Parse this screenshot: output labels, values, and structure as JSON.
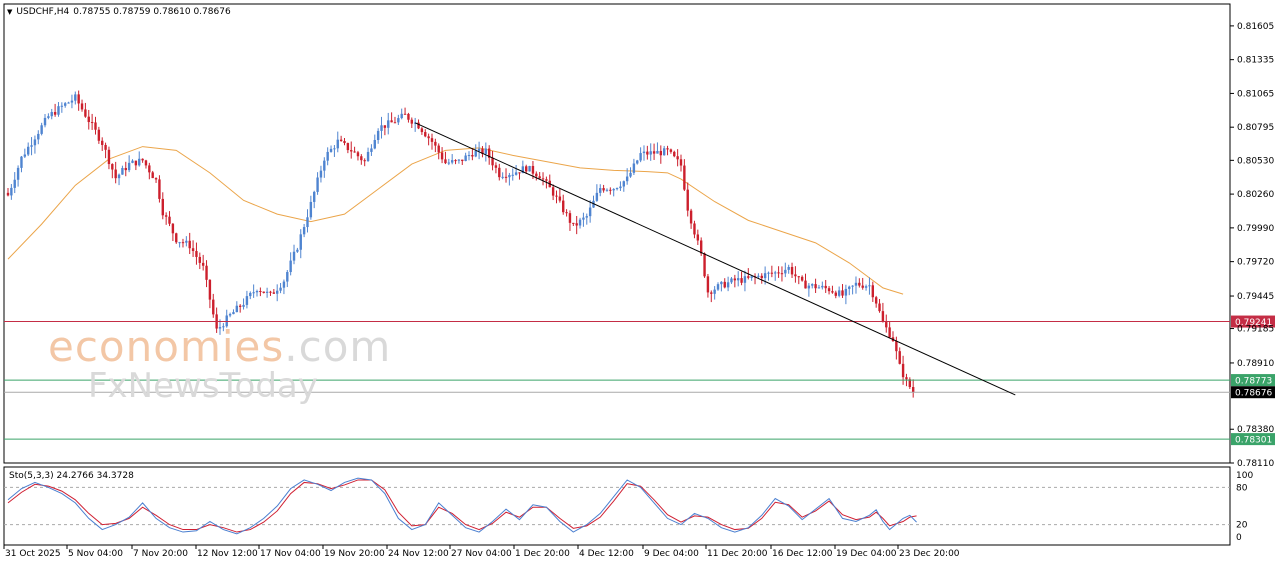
{
  "header": {
    "symbol": "USDCHF,H4",
    "ohlc": "0.78755 0.78759 0.78610 0.78676"
  },
  "oscillator": {
    "label": "Sto(5,3,3) 24.2766 34.3728",
    "ticks": [
      "100",
      "80",
      "20",
      "0"
    ]
  },
  "watermark": {
    "line1_main": "economies",
    "line1_tld": ".com",
    "line2": "FxNewsToday"
  },
  "colors": {
    "bull": "#4f84d0",
    "bear": "#cc1f2c",
    "ma": "#eba54a",
    "resistance": "#c42d45",
    "support": "#3aa369",
    "current": "#000000",
    "trendline": "#000000",
    "sto_main": "#4a7fd0",
    "sto_signal": "#d02032"
  },
  "chart_data": {
    "type": "candlestick",
    "symbol": "USDCHF",
    "timeframe": "H4",
    "y_ticks": [
      "0.81605",
      "0.81335",
      "0.81065",
      "0.80795",
      "0.80530",
      "0.80260",
      "0.79990",
      "0.79720",
      "0.79445",
      "0.79185",
      "0.78910",
      "0.78380",
      "0.78110"
    ],
    "y_range": [
      0.7811,
      0.8178
    ],
    "x_labels": [
      "31 Oct 2025",
      "5 Nov 04:00",
      "7 Nov 20:00",
      "12 Nov 12:00",
      "17 Nov 04:00",
      "19 Nov 20:00",
      "24 Nov 12:00",
      "27 Nov 04:00",
      "1 Dec 20:00",
      "4 Dec 12:00",
      "9 Dec 04:00",
      "11 Dec 20:00",
      "16 Dec 12:00",
      "19 Dec 04:00",
      "23 Dec 20:00"
    ],
    "levels": [
      {
        "value": "0.79241",
        "price": 0.79241,
        "role": "resistance"
      },
      {
        "value": "0.78773",
        "price": 0.78773,
        "role": "support"
      },
      {
        "value": "0.78676",
        "price": 0.78676,
        "role": "current"
      },
      {
        "value": "0.78301",
        "price": 0.78301,
        "role": "support"
      }
    ],
    "trendline": {
      "from": [
        121,
        0.8083
      ],
      "to": [
        283,
        0.7867
      ]
    },
    "close_path": [
      [
        0,
        0.8025
      ],
      [
        4,
        0.8055
      ],
      [
        8,
        0.8072
      ],
      [
        12,
        0.8088
      ],
      [
        16,
        0.8096
      ],
      [
        20,
        0.8103
      ],
      [
        24,
        0.8085
      ],
      [
        28,
        0.8067
      ],
      [
        32,
        0.8039
      ],
      [
        36,
        0.805
      ],
      [
        40,
        0.8053
      ],
      [
        44,
        0.8037
      ],
      [
        46,
        0.8012
      ],
      [
        50,
        0.799
      ],
      [
        54,
        0.7985
      ],
      [
        58,
        0.7967
      ],
      [
        60,
        0.7942
      ],
      [
        62,
        0.7917
      ],
      [
        66,
        0.7929
      ],
      [
        70,
        0.7939
      ],
      [
        74,
        0.7951
      ],
      [
        78,
        0.7945
      ],
      [
        82,
        0.7957
      ],
      [
        86,
        0.7984
      ],
      [
        90,
        0.8018
      ],
      [
        94,
        0.8055
      ],
      [
        98,
        0.8068
      ],
      [
        102,
        0.8061
      ],
      [
        106,
        0.8052
      ],
      [
        110,
        0.8079
      ],
      [
        114,
        0.8083
      ],
      [
        118,
        0.8089
      ],
      [
        122,
        0.8081
      ],
      [
        126,
        0.8068
      ],
      [
        130,
        0.8051
      ],
      [
        134,
        0.8052
      ],
      [
        138,
        0.8059
      ],
      [
        142,
        0.806
      ],
      [
        146,
        0.8042
      ],
      [
        150,
        0.8043
      ],
      [
        154,
        0.8047
      ],
      [
        158,
        0.8041
      ],
      [
        162,
        0.8027
      ],
      [
        166,
        0.8009
      ],
      [
        168,
        0.8
      ],
      [
        172,
        0.8008
      ],
      [
        176,
        0.8031
      ],
      [
        180,
        0.8031
      ],
      [
        184,
        0.8038
      ],
      [
        188,
        0.8058
      ],
      [
        192,
        0.8059
      ],
      [
        196,
        0.806
      ],
      [
        200,
        0.8049
      ],
      [
        202,
        0.8015
      ],
      [
        206,
        0.7977
      ],
      [
        208,
        0.7948
      ],
      [
        212,
        0.7953
      ],
      [
        216,
        0.7957
      ],
      [
        220,
        0.7958
      ],
      [
        224,
        0.7961
      ],
      [
        228,
        0.7963
      ],
      [
        232,
        0.7967
      ],
      [
        236,
        0.7954
      ],
      [
        240,
        0.7952
      ],
      [
        244,
        0.795
      ],
      [
        248,
        0.7945
      ],
      [
        252,
        0.7954
      ],
      [
        256,
        0.7953
      ],
      [
        258,
        0.794
      ],
      [
        260,
        0.7923
      ],
      [
        263,
        0.791
      ],
      [
        265,
        0.7888
      ],
      [
        267,
        0.7876
      ],
      [
        269,
        0.7868
      ]
    ],
    "moving_average": [
      [
        0,
        0.7974
      ],
      [
        10,
        0.8002
      ],
      [
        20,
        0.8033
      ],
      [
        30,
        0.8054
      ],
      [
        40,
        0.8064
      ],
      [
        50,
        0.8061
      ],
      [
        60,
        0.8043
      ],
      [
        70,
        0.8021
      ],
      [
        80,
        0.801
      ],
      [
        90,
        0.8004
      ],
      [
        100,
        0.801
      ],
      [
        110,
        0.803
      ],
      [
        120,
        0.805
      ],
      [
        130,
        0.8061
      ],
      [
        140,
        0.8063
      ],
      [
        150,
        0.8057
      ],
      [
        160,
        0.8052
      ],
      [
        170,
        0.8047
      ],
      [
        180,
        0.8045
      ],
      [
        190,
        0.8044
      ],
      [
        196,
        0.8043
      ],
      [
        200,
        0.8038
      ],
      [
        210,
        0.802
      ],
      [
        220,
        0.8005
      ],
      [
        230,
        0.7996
      ],
      [
        240,
        0.7987
      ],
      [
        250,
        0.7971
      ],
      [
        260,
        0.7951
      ],
      [
        266,
        0.7946
      ]
    ],
    "stochastic": {
      "main_name": "Sto(5,3,3)",
      "main_value": 24.2766,
      "signal_value": 34.3728,
      "levels": [
        20,
        80
      ],
      "range": [
        0,
        100
      ],
      "main_path": [
        [
          0,
          60
        ],
        [
          4,
          78
        ],
        [
          8,
          88
        ],
        [
          12,
          80
        ],
        [
          16,
          70
        ],
        [
          20,
          55
        ],
        [
          24,
          30
        ],
        [
          28,
          12
        ],
        [
          32,
          20
        ],
        [
          36,
          32
        ],
        [
          40,
          55
        ],
        [
          44,
          30
        ],
        [
          48,
          15
        ],
        [
          52,
          8
        ],
        [
          56,
          10
        ],
        [
          60,
          25
        ],
        [
          64,
          12
        ],
        [
          68,
          5
        ],
        [
          72,
          15
        ],
        [
          76,
          30
        ],
        [
          80,
          50
        ],
        [
          84,
          78
        ],
        [
          88,
          92
        ],
        [
          92,
          85
        ],
        [
          96,
          75
        ],
        [
          100,
          88
        ],
        [
          104,
          95
        ],
        [
          108,
          92
        ],
        [
          112,
          70
        ],
        [
          116,
          30
        ],
        [
          120,
          12
        ],
        [
          124,
          20
        ],
        [
          128,
          55
        ],
        [
          132,
          35
        ],
        [
          136,
          15
        ],
        [
          140,
          8
        ],
        [
          144,
          25
        ],
        [
          148,
          45
        ],
        [
          152,
          28
        ],
        [
          156,
          52
        ],
        [
          160,
          48
        ],
        [
          164,
          25
        ],
        [
          168,
          8
        ],
        [
          172,
          20
        ],
        [
          176,
          38
        ],
        [
          180,
          65
        ],
        [
          184,
          92
        ],
        [
          188,
          80
        ],
        [
          192,
          55
        ],
        [
          196,
          30
        ],
        [
          200,
          20
        ],
        [
          204,
          38
        ],
        [
          208,
          30
        ],
        [
          212,
          15
        ],
        [
          216,
          8
        ],
        [
          220,
          15
        ],
        [
          224,
          35
        ],
        [
          228,
          62
        ],
        [
          232,
          50
        ],
        [
          236,
          28
        ],
        [
          240,
          45
        ],
        [
          244,
          62
        ],
        [
          248,
          30
        ],
        [
          252,
          25
        ],
        [
          256,
          35
        ],
        [
          258,
          44
        ],
        [
          260,
          25
        ],
        [
          262,
          12
        ],
        [
          266,
          30
        ],
        [
          268,
          35
        ],
        [
          270,
          24
        ]
      ],
      "signal_path": [
        [
          0,
          55
        ],
        [
          4,
          72
        ],
        [
          8,
          85
        ],
        [
          12,
          82
        ],
        [
          16,
          74
        ],
        [
          20,
          60
        ],
        [
          24,
          38
        ],
        [
          28,
          20
        ],
        [
          32,
          22
        ],
        [
          36,
          30
        ],
        [
          40,
          48
        ],
        [
          44,
          35
        ],
        [
          48,
          20
        ],
        [
          52,
          12
        ],
        [
          56,
          12
        ],
        [
          60,
          20
        ],
        [
          64,
          15
        ],
        [
          68,
          8
        ],
        [
          72,
          12
        ],
        [
          76,
          24
        ],
        [
          80,
          42
        ],
        [
          84,
          70
        ],
        [
          88,
          88
        ],
        [
          92,
          86
        ],
        [
          96,
          78
        ],
        [
          100,
          84
        ],
        [
          104,
          92
        ],
        [
          108,
          92
        ],
        [
          112,
          76
        ],
        [
          116,
          40
        ],
        [
          120,
          18
        ],
        [
          124,
          20
        ],
        [
          128,
          48
        ],
        [
          132,
          38
        ],
        [
          136,
          20
        ],
        [
          140,
          12
        ],
        [
          144,
          22
        ],
        [
          148,
          40
        ],
        [
          152,
          32
        ],
        [
          156,
          48
        ],
        [
          160,
          48
        ],
        [
          164,
          30
        ],
        [
          168,
          14
        ],
        [
          172,
          18
        ],
        [
          176,
          32
        ],
        [
          180,
          58
        ],
        [
          184,
          86
        ],
        [
          188,
          82
        ],
        [
          192,
          60
        ],
        [
          196,
          36
        ],
        [
          200,
          24
        ],
        [
          204,
          34
        ],
        [
          208,
          32
        ],
        [
          212,
          20
        ],
        [
          216,
          12
        ],
        [
          220,
          14
        ],
        [
          224,
          30
        ],
        [
          228,
          56
        ],
        [
          232,
          52
        ],
        [
          236,
          32
        ],
        [
          240,
          42
        ],
        [
          244,
          58
        ],
        [
          248,
          36
        ],
        [
          252,
          28
        ],
        [
          256,
          32
        ],
        [
          258,
          40
        ],
        [
          260,
          30
        ],
        [
          262,
          18
        ],
        [
          266,
          25
        ],
        [
          268,
          32
        ],
        [
          270,
          34
        ]
      ]
    }
  }
}
